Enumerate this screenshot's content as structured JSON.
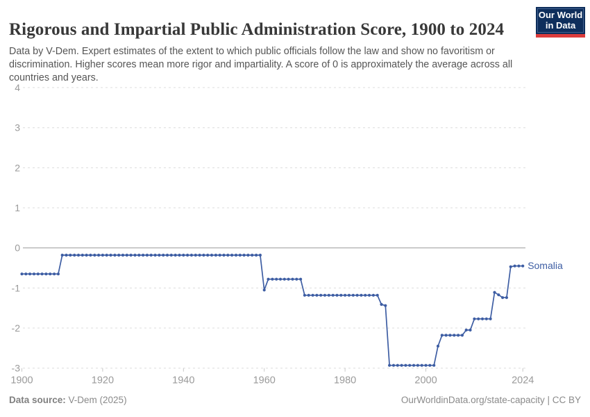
{
  "header": {
    "title": "Rigorous and Impartial Public Administration Score, 1900 to 2024",
    "subtitle": "Data by V-Dem. Expert estimates of the extent to which public officials follow the law and show no favoritism or discrimination. Higher scores mean more rigor and impartiality. A score of 0 is approximately the average across all countries and years."
  },
  "logo": {
    "line1": "Our World",
    "line2": "in Data",
    "bg_color": "#0e2e5c",
    "bar_color": "#dc3c3c"
  },
  "footer": {
    "source_label": "Data source:",
    "source_value": " V-Dem (2025)",
    "link": "OurWorldinData.org/state-capacity | CC BY"
  },
  "colors": {
    "line": "#3d5da3",
    "gridline": "#dcdcdc",
    "zero_line": "#a5a5a5",
    "tick_label": "#9a9a9a",
    "tick_mark": "#c8c8c8"
  },
  "chart_data": {
    "type": "line",
    "title": "Rigorous and Impartial Public Administration Score, 1900 to 2024",
    "xlabel": "",
    "ylabel": "",
    "x_range": [
      1900,
      2024
    ],
    "ylim": [
      -3,
      4
    ],
    "y_ticks": [
      4,
      3,
      2,
      1,
      0,
      -1,
      -2,
      -3
    ],
    "x_ticks": [
      1900,
      1920,
      1940,
      1960,
      1980,
      2000,
      2024
    ],
    "grid": true,
    "legend_position": "end-of-line",
    "series": [
      {
        "name": "Somalia",
        "color": "#3d5da3",
        "year_start": 1900,
        "values": [
          -0.65,
          -0.65,
          -0.65,
          -0.65,
          -0.65,
          -0.65,
          -0.65,
          -0.65,
          -0.65,
          -0.65,
          -0.18,
          -0.18,
          -0.18,
          -0.18,
          -0.18,
          -0.18,
          -0.18,
          -0.18,
          -0.18,
          -0.18,
          -0.18,
          -0.18,
          -0.18,
          -0.18,
          -0.18,
          -0.18,
          -0.18,
          -0.18,
          -0.18,
          -0.18,
          -0.18,
          -0.18,
          -0.18,
          -0.18,
          -0.18,
          -0.18,
          -0.18,
          -0.18,
          -0.18,
          -0.18,
          -0.18,
          -0.18,
          -0.18,
          -0.18,
          -0.18,
          -0.18,
          -0.18,
          -0.18,
          -0.18,
          -0.18,
          -0.18,
          -0.18,
          -0.18,
          -0.18,
          -0.18,
          -0.18,
          -0.18,
          -0.18,
          -0.18,
          -0.18,
          -1.05,
          -0.78,
          -0.78,
          -0.78,
          -0.78,
          -0.78,
          -0.78,
          -0.78,
          -0.78,
          -0.78,
          -1.18,
          -1.18,
          -1.18,
          -1.18,
          -1.18,
          -1.18,
          -1.18,
          -1.18,
          -1.18,
          -1.18,
          -1.18,
          -1.18,
          -1.18,
          -1.18,
          -1.18,
          -1.18,
          -1.18,
          -1.18,
          -1.18,
          -1.41,
          -1.44,
          -2.93,
          -2.93,
          -2.93,
          -2.93,
          -2.93,
          -2.93,
          -2.93,
          -2.93,
          -2.93,
          -2.93,
          -2.93,
          -2.93,
          -2.45,
          -2.18,
          -2.18,
          -2.18,
          -2.18,
          -2.18,
          -2.18,
          -2.05,
          -2.05,
          -1.77,
          -1.77,
          -1.77,
          -1.77,
          -1.77,
          -1.11,
          -1.17,
          -1.24,
          -1.24,
          -0.47,
          -0.45,
          -0.45,
          -0.45
        ]
      }
    ]
  }
}
